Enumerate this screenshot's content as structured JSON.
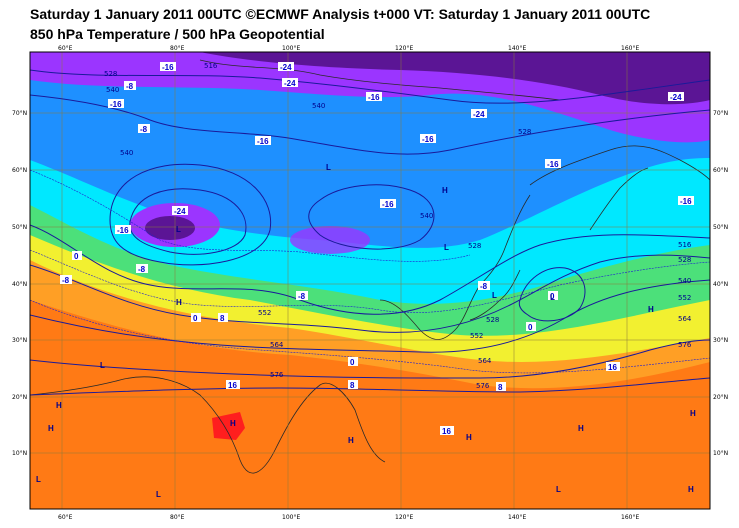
{
  "title_line1": "Saturday 1 January 2011 00UTC ©ECMWF Analysis t+000 VT: Saturday 1 January 2011 00UTC",
  "title_line2": "850 hPa Temperature / 500 hPa Geopotential",
  "lon_labels": [
    "60°E",
    "80°E",
    "100°E",
    "120°E",
    "140°E",
    "160°E"
  ],
  "lat_labels": [
    "70°N",
    "60°N",
    "50°N",
    "40°N",
    "30°N",
    "20°N",
    "10°N"
  ],
  "geopotential_labels": [
    "528",
    "540",
    "516",
    "540",
    "528",
    "552",
    "564",
    "576",
    "540",
    "528",
    "552",
    "564",
    "576",
    "516",
    "528",
    "540",
    "552",
    "564",
    "576",
    "540",
    "528"
  ],
  "temperature_labels": [
    "-16",
    "-8",
    "-16",
    "-24",
    "-8",
    "-16",
    "-24",
    "-24",
    "-16",
    "-16",
    "-24",
    "-16",
    "-8",
    "-16",
    "-8",
    "0",
    "-8",
    "0",
    "8",
    "8",
    "0",
    "16",
    "8",
    "0",
    "16",
    "16",
    "-16",
    "-8",
    "0",
    "-16",
    "-24"
  ],
  "pressure_centres": [
    "H",
    "L",
    "H",
    "L",
    "H",
    "L",
    "H",
    "L",
    "H",
    "L",
    "H",
    "L",
    "H",
    "H",
    "H",
    "L",
    "H",
    "L",
    "L",
    "H"
  ],
  "colors": {
    "very_cold": "#5a1090",
    "cold_purple": "#9b30ff",
    "blue": "#1a8cff",
    "cyan": "#00e5ff",
    "green": "#40e070",
    "yellow": "#f0f030",
    "orange": "#ff9a20",
    "hot_orange": "#ff6a10",
    "red": "#ff2020",
    "contour": "#1a1a9a"
  }
}
